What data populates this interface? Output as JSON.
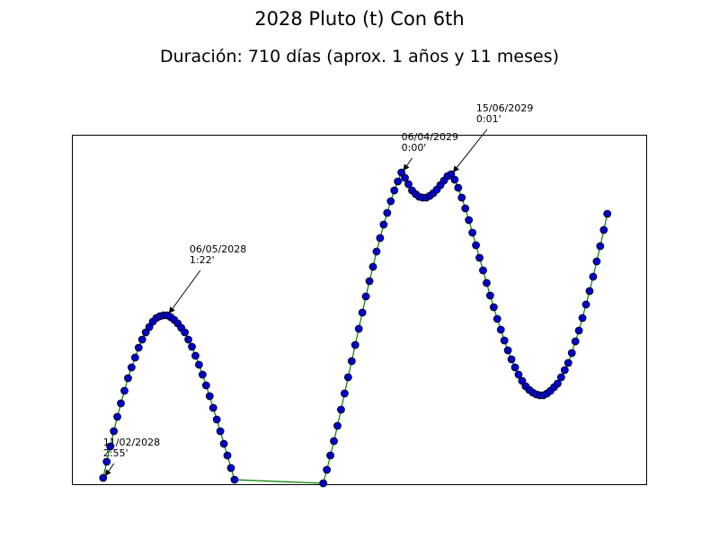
{
  "chart_data": {
    "type": "line",
    "title": "2028 Pluto (t) Con 6th",
    "subtitle": "Duración: 710 días (aprox. 1 años y 11 meses)",
    "xlim": [
      -44,
      766
    ],
    "ylim": [
      0,
      390
    ],
    "line_color": "#008000",
    "marker_color": "#0000cd",
    "x": [
      0,
      5,
      10,
      15,
      20,
      25,
      30,
      35,
      40,
      45,
      50,
      55,
      60,
      65,
      70,
      75,
      80,
      85,
      90,
      95,
      100,
      105,
      110,
      115,
      120,
      125,
      130,
      135,
      140,
      145,
      150,
      155,
      160,
      165,
      170,
      175,
      180,
      185,
      310,
      315,
      320,
      325,
      330,
      335,
      340,
      345,
      350,
      355,
      360,
      365,
      370,
      375,
      380,
      385,
      390,
      395,
      400,
      405,
      410,
      415,
      420,
      425,
      430,
      435,
      440,
      445,
      450,
      455,
      460,
      465,
      470,
      475,
      480,
      485,
      490,
      495,
      500,
      505,
      510,
      515,
      520,
      525,
      530,
      535,
      540,
      545,
      550,
      555,
      560,
      565,
      570,
      575,
      580,
      585,
      590,
      595,
      600,
      605,
      610,
      615,
      620,
      625,
      630,
      635,
      640,
      645,
      650,
      655,
      660,
      665,
      670,
      675,
      680,
      685,
      690,
      695,
      700,
      705,
      710
    ],
    "values": [
      8,
      26,
      43,
      60,
      76,
      91,
      105,
      119,
      131,
      142,
      153,
      162,
      170,
      176,
      182,
      186,
      188,
      189,
      189,
      187,
      184,
      180,
      175,
      170,
      162,
      154,
      144,
      134,
      123,
      111,
      99,
      86,
      73,
      60,
      46,
      33,
      19,
      6,
      2,
      17,
      33,
      49,
      66,
      84,
      102,
      120,
      138,
      156,
      174,
      192,
      210,
      227,
      243,
      260,
      275,
      290,
      303,
      316,
      328,
      338,
      348,
      342,
      335,
      328,
      324,
      321,
      320,
      320,
      322,
      325,
      329,
      334,
      339,
      344,
      346,
      340,
      331,
      320,
      308,
      295,
      281,
      267,
      253,
      239,
      225,
      211,
      198,
      185,
      173,
      161,
      150,
      140,
      131,
      123,
      116,
      110,
      106,
      103,
      101,
      100,
      100,
      102,
      105,
      109,
      113,
      120,
      128,
      136,
      147,
      160,
      172,
      186,
      201,
      216,
      232,
      249,
      266,
      284,
      302
    ],
    "annotations": [
      {
        "x": 0,
        "y": 8,
        "lines": [
          "11/02/2028",
          "2:55'"
        ]
      },
      {
        "x": 90,
        "y": 189,
        "lines": [
          "06/05/2028",
          "1:22'"
        ]
      },
      {
        "x": 420,
        "y": 348,
        "lines": [
          "06/04/2029",
          "0:00'"
        ]
      },
      {
        "x": 490,
        "y": 346,
        "lines": [
          "15/06/2029",
          "0:01'"
        ]
      }
    ]
  }
}
